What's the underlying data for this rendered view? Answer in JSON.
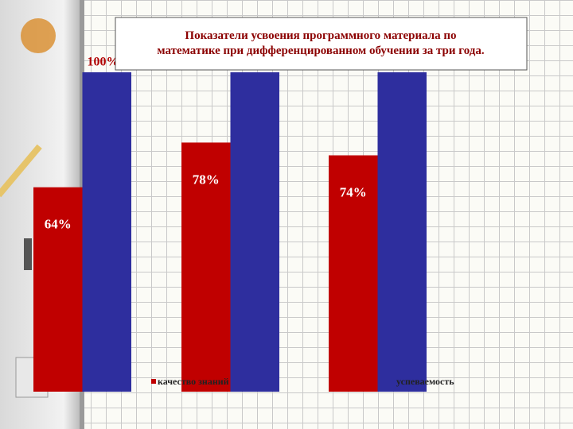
{
  "chart_data": {
    "type": "bar",
    "title": "Показатели усвоения программного материала по математике  при дифференцированном обучении за три года.",
    "categories": [
      null,
      null,
      null
    ],
    "series": [
      {
        "name": "качество знаний",
        "color": "#c00000",
        "values": [
          64,
          78,
          74
        ],
        "value_labels": [
          "64%",
          "78%",
          "74%"
        ]
      },
      {
        "name": "успеваемость",
        "color": "#2e2e9e",
        "values": [
          100,
          100,
          100
        ],
        "value_labels": [
          "100%",
          null,
          null
        ]
      }
    ],
    "ylim": [
      0,
      100
    ]
  }
}
